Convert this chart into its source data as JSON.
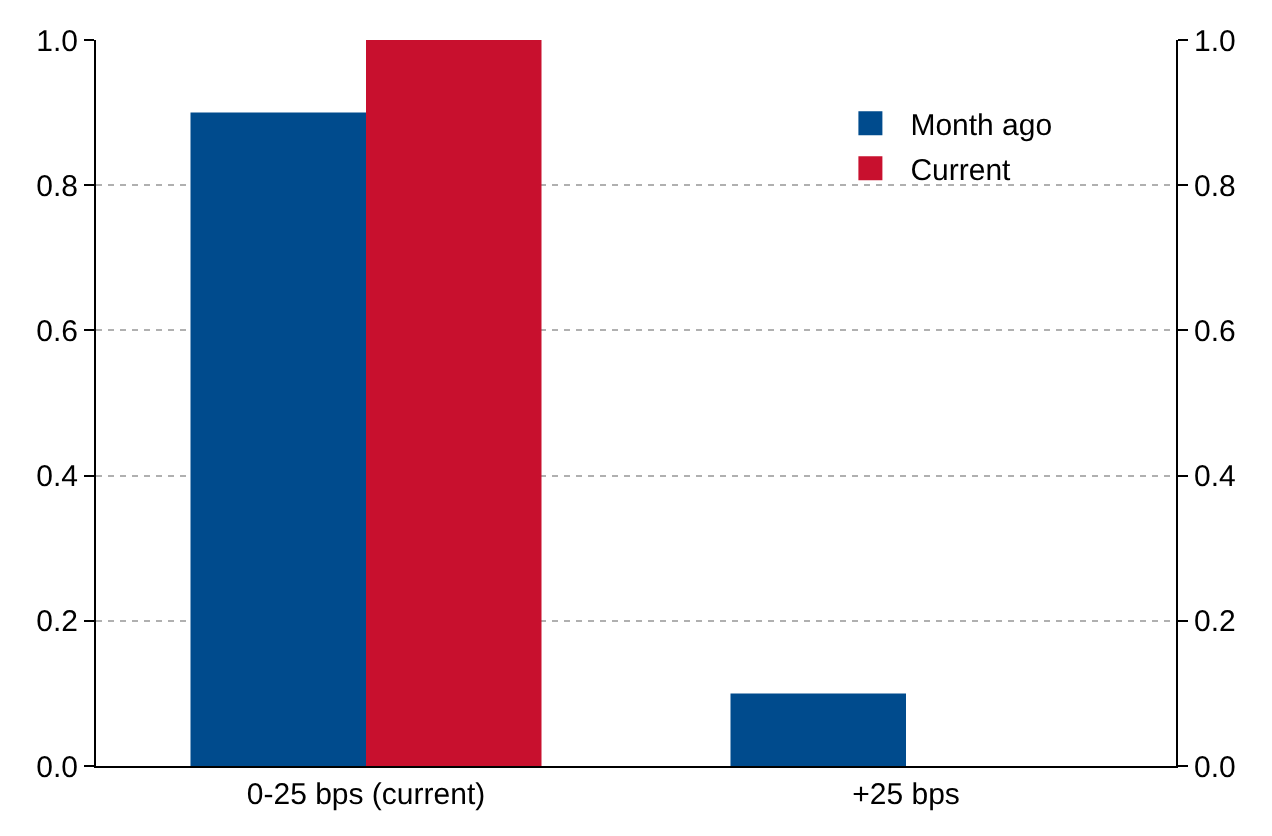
{
  "chart_data": {
    "type": "bar",
    "categories": [
      "0-25 bps (current)",
      "+25 bps"
    ],
    "series": [
      {
        "name": "Month ago",
        "color": "#004b8d",
        "values": [
          0.9,
          0.1
        ]
      },
      {
        "name": "Current",
        "color": "#c8102e",
        "values": [
          1.0,
          0
        ]
      }
    ],
    "ylim": [
      0,
      1.0
    ],
    "yticks": [
      {
        "value": 0,
        "label": "0.0"
      },
      0.2,
      0.4,
      0.6,
      0.8,
      {
        "value": 1.0,
        "label": "1.0"
      }
    ],
    "y2lim": [
      0,
      1.0
    ],
    "y2ticks": [
      {
        "value": 0,
        "label": "0.0"
      },
      0.2,
      0.4,
      0.6,
      0.8,
      {
        "value": 1.0,
        "label": "1.0"
      }
    ],
    "grid": "y",
    "legend": "top right"
  }
}
